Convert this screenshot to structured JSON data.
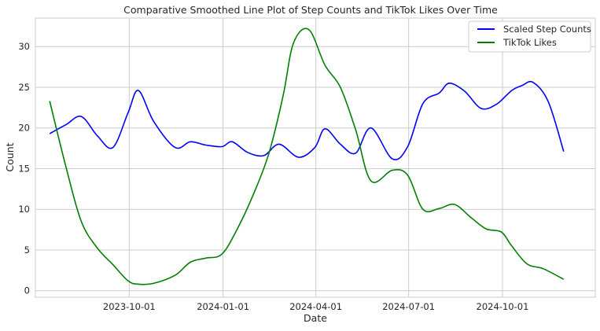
{
  "chart_data": {
    "type": "line",
    "title": "Comparative Smoothed Line Plot of Step Counts and TikTok Likes Over Time",
    "xlabel": "Date",
    "ylabel": "Count",
    "x_axis_kind": "date",
    "xlim": [
      "2023-07-01",
      "2024-12-31"
    ],
    "ylim": [
      -0.8,
      33.5
    ],
    "x_ticks": [
      "2023-10-01",
      "2024-01-01",
      "2024-04-01",
      "2024-07-01",
      "2024-10-01"
    ],
    "y_ticks": [
      0,
      5,
      10,
      15,
      20,
      25,
      30
    ],
    "grid": true,
    "legend_position": "top-right",
    "series": [
      {
        "name": "Scaled Step Counts",
        "color": "#0000ff",
        "x": [
          "2023-07-15",
          "2023-07-31",
          "2023-08-15",
          "2023-08-31",
          "2023-09-15",
          "2023-09-30",
          "2023-10-10",
          "2023-10-25",
          "2023-11-15",
          "2023-11-30",
          "2023-12-15",
          "2023-12-31",
          "2024-01-10",
          "2024-01-25",
          "2024-02-10",
          "2024-02-25",
          "2024-03-15",
          "2024-03-31",
          "2024-04-10",
          "2024-04-25",
          "2024-05-10",
          "2024-05-25",
          "2024-06-15",
          "2024-06-30",
          "2024-07-15",
          "2024-07-31",
          "2024-08-10",
          "2024-08-25",
          "2024-09-10",
          "2024-09-25",
          "2024-10-10",
          "2024-10-20",
          "2024-10-31",
          "2024-11-15",
          "2024-11-30"
        ],
        "y": [
          19.3,
          20.4,
          21.4,
          19.0,
          17.6,
          21.9,
          24.6,
          20.8,
          17.6,
          18.3,
          17.9,
          17.7,
          18.3,
          17.0,
          16.6,
          18.0,
          16.4,
          17.6,
          19.9,
          18.0,
          16.9,
          20.0,
          16.2,
          17.7,
          23.0,
          24.3,
          25.5,
          24.5,
          22.4,
          22.9,
          24.6,
          25.2,
          25.6,
          23.2,
          17.1
        ]
      },
      {
        "name": "TikTok Likes",
        "color": "#008000",
        "x": [
          "2023-07-15",
          "2023-07-31",
          "2023-08-15",
          "2023-08-31",
          "2023-09-15",
          "2023-09-30",
          "2023-10-10",
          "2023-10-25",
          "2023-11-15",
          "2023-11-30",
          "2023-12-15",
          "2023-12-31",
          "2024-01-15",
          "2024-01-31",
          "2024-02-15",
          "2024-02-29",
          "2024-03-10",
          "2024-03-25",
          "2024-04-10",
          "2024-04-25",
          "2024-05-10",
          "2024-05-25",
          "2024-06-15",
          "2024-06-30",
          "2024-07-15",
          "2024-07-31",
          "2024-08-15",
          "2024-08-31",
          "2024-09-15",
          "2024-09-30",
          "2024-10-10",
          "2024-10-25",
          "2024-11-10",
          "2024-11-30"
        ],
        "y": [
          23.3,
          15.2,
          8.5,
          5.2,
          3.2,
          1.2,
          0.8,
          0.9,
          1.9,
          3.5,
          4.0,
          4.5,
          7.6,
          11.9,
          16.9,
          24.0,
          30.4,
          32.1,
          27.7,
          25.0,
          19.8,
          13.5,
          14.8,
          14.2,
          10.0,
          10.1,
          10.6,
          9.0,
          7.6,
          7.2,
          5.5,
          3.3,
          2.7,
          1.4
        ]
      }
    ]
  }
}
